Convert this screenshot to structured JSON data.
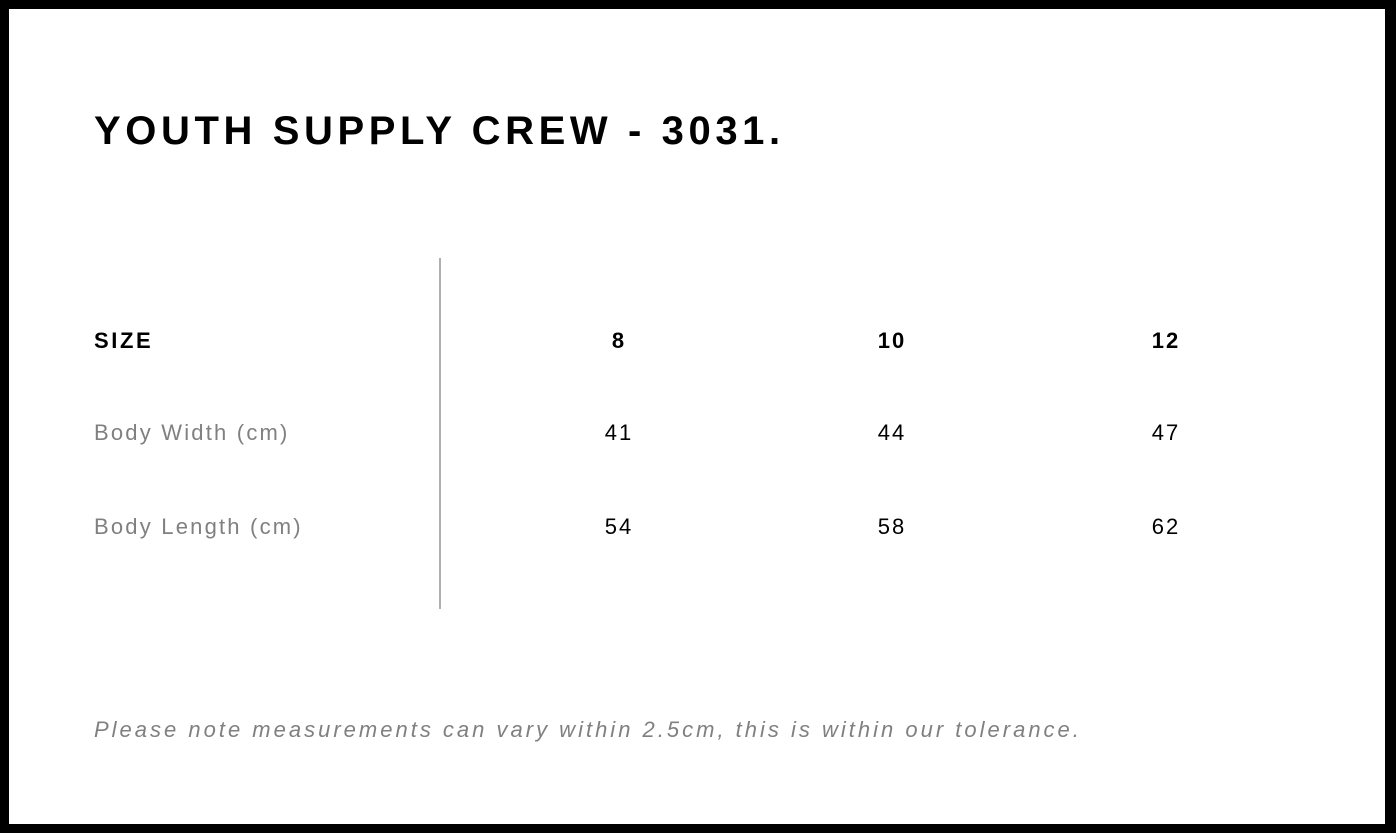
{
  "title": "YOUTH SUPPLY CREW - 3031.",
  "table": {
    "header_label": "SIZE",
    "sizes": [
      "8",
      "10",
      "12"
    ],
    "rows": [
      {
        "label": "Body Width (cm)",
        "values": [
          "41",
          "44",
          "47"
        ]
      },
      {
        "label": "Body Length (cm)",
        "values": [
          "54",
          "58",
          "62"
        ]
      }
    ]
  },
  "note": "Please note measurements can vary within 2.5cm, this is within our tolerance."
}
